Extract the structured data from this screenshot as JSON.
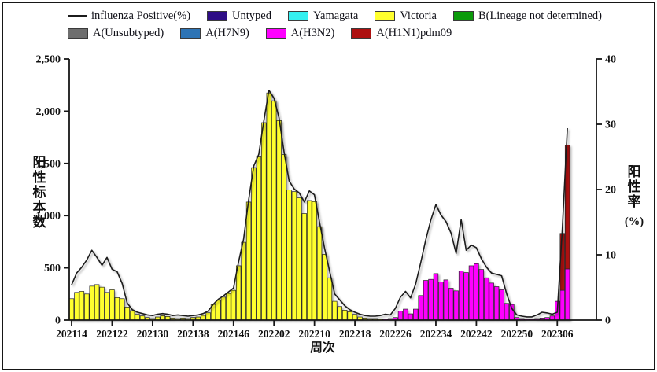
{
  "figure": {
    "background": "#ffffff",
    "border_color": "#161616"
  },
  "legend": {
    "rows": [
      [
        {
          "name": "influenza-positive-rate",
          "label": "influenza Positive(%)",
          "swatch": "line",
          "color": "#1c1c1c"
        },
        {
          "name": "untyped",
          "label": "Untyped",
          "swatch": "box",
          "color": "#2e0d86"
        },
        {
          "name": "yamagata",
          "label": "Yamagata",
          "swatch": "box",
          "color": "#35f0f0"
        },
        {
          "name": "victoria",
          "label": "Victoria",
          "swatch": "box",
          "color": "#ffff2e"
        },
        {
          "name": "b-lineage-not-determined",
          "label": "B(Lineage not determined)",
          "swatch": "box",
          "color": "#0b9a0b"
        }
      ],
      [
        {
          "name": "a-unsubtyped",
          "label": "A(Unsubtyped)",
          "swatch": "box",
          "color": "#6e6e6e"
        },
        {
          "name": "a-h7n9",
          "label": "A(H7N9)",
          "swatch": "box",
          "color": "#2e74b5"
        },
        {
          "name": "a-h3n2",
          "label": "A(H3N2)",
          "swatch": "box",
          "color": "#ff00ff"
        },
        {
          "name": "a-h1n1pdm09",
          "label": "A(H1N1)pdm09",
          "swatch": "box",
          "color": "#ad1010"
        }
      ]
    ]
  },
  "axes": {
    "left": {
      "title": "阳性标本数",
      "tick_labels": [
        "0",
        "500",
        "1,000",
        "1,500",
        "2,000",
        "2,500"
      ],
      "tick_values": [
        0,
        500,
        1000,
        1500,
        2000,
        2500
      ]
    },
    "right": {
      "title": "阳性率",
      "unit": "(%)",
      "tick_labels": [
        "0",
        "10",
        "20",
        "30",
        "40"
      ],
      "tick_values": [
        0,
        10,
        20,
        30,
        40
      ]
    },
    "x": {
      "title": "周次",
      "tick_labels": [
        "202114",
        "202122",
        "202130",
        "202138",
        "202146",
        "202202",
        "202210",
        "202218",
        "202226",
        "202234",
        "202242",
        "202250",
        "202306"
      ],
      "tick_step_weeks": 8
    }
  },
  "chart_data": {
    "type": "bar",
    "subtype": "stacked-bars-with-line",
    "xlabel": "周次",
    "ylabel_left": "阳性标本数",
    "ylabel_right": "阳性率(%)",
    "ylim_left": [
      0,
      2500
    ],
    "ylim_right": [
      0,
      40
    ],
    "grid": false,
    "legend_position": "top",
    "weeks": [
      "202114",
      "202115",
      "202116",
      "202117",
      "202118",
      "202119",
      "202120",
      "202121",
      "202122",
      "202123",
      "202124",
      "202125",
      "202126",
      "202127",
      "202128",
      "202129",
      "202130",
      "202131",
      "202132",
      "202133",
      "202134",
      "202135",
      "202136",
      "202137",
      "202138",
      "202139",
      "202140",
      "202141",
      "202142",
      "202143",
      "202144",
      "202145",
      "202146",
      "202147",
      "202148",
      "202149",
      "202150",
      "202151",
      "202152",
      "202201",
      "202202",
      "202203",
      "202204",
      "202205",
      "202206",
      "202207",
      "202208",
      "202209",
      "202210",
      "202211",
      "202212",
      "202213",
      "202214",
      "202215",
      "202216",
      "202217",
      "202218",
      "202219",
      "202220",
      "202221",
      "202222",
      "202223",
      "202224",
      "202225",
      "202226",
      "202227",
      "202228",
      "202229",
      "202230",
      "202231",
      "202232",
      "202233",
      "202234",
      "202235",
      "202236",
      "202237",
      "202238",
      "202239",
      "202240",
      "202241",
      "202242",
      "202243",
      "202244",
      "202245",
      "202246",
      "202247",
      "202248",
      "202249",
      "202250",
      "202251",
      "202252",
      "202301",
      "202302",
      "202303",
      "202304",
      "202305",
      "202306",
      "202307",
      "202308"
    ],
    "series": [
      {
        "name": "Victoria",
        "color": "#ffff2e",
        "values": [
          205,
          265,
          275,
          250,
          325,
          340,
          315,
          265,
          290,
          215,
          205,
          125,
          90,
          55,
          40,
          25,
          15,
          30,
          42,
          35,
          20,
          15,
          20,
          15,
          25,
          30,
          45,
          70,
          150,
          190,
          220,
          255,
          285,
          520,
          745,
          1130,
          1460,
          1570,
          1890,
          2175,
          2100,
          1910,
          1585,
          1245,
          1230,
          1170,
          1020,
          1145,
          1135,
          895,
          630,
          405,
          180,
          130,
          95,
          80,
          55,
          30,
          20,
          15,
          15,
          10,
          0,
          0,
          0,
          0,
          0,
          0,
          0,
          0,
          0,
          0,
          0,
          0,
          0,
          0,
          0,
          0,
          0,
          0,
          0,
          0,
          0,
          0,
          0,
          0,
          0,
          0,
          0,
          0,
          0,
          0,
          0,
          0,
          0,
          0,
          0,
          0,
          0
        ]
      },
      {
        "name": "A(H3N2)",
        "color": "#ff00ff",
        "values": [
          0,
          0,
          0,
          0,
          0,
          0,
          0,
          0,
          0,
          0,
          0,
          0,
          0,
          0,
          0,
          0,
          0,
          0,
          0,
          0,
          0,
          0,
          0,
          0,
          0,
          0,
          0,
          0,
          0,
          0,
          0,
          0,
          0,
          0,
          0,
          0,
          0,
          0,
          0,
          0,
          0,
          0,
          0,
          0,
          0,
          0,
          0,
          0,
          0,
          0,
          0,
          0,
          0,
          0,
          0,
          0,
          0,
          0,
          0,
          0,
          0,
          0,
          10,
          15,
          25,
          85,
          105,
          60,
          105,
          235,
          380,
          390,
          445,
          365,
          385,
          305,
          280,
          470,
          455,
          520,
          540,
          485,
          405,
          355,
          320,
          290,
          160,
          150,
          25,
          15,
          10,
          10,
          15,
          20,
          25,
          40,
          180,
          285,
          490
        ]
      },
      {
        "name": "A(H1N1)pdm09",
        "color": "#ad1010",
        "values": [
          0,
          0,
          0,
          0,
          0,
          0,
          0,
          0,
          0,
          0,
          0,
          0,
          0,
          0,
          0,
          0,
          0,
          0,
          0,
          0,
          0,
          0,
          0,
          0,
          0,
          0,
          0,
          0,
          0,
          0,
          0,
          0,
          0,
          0,
          0,
          0,
          0,
          0,
          0,
          0,
          0,
          0,
          0,
          0,
          0,
          0,
          0,
          0,
          0,
          0,
          0,
          0,
          0,
          0,
          0,
          0,
          0,
          0,
          0,
          0,
          0,
          0,
          0,
          0,
          0,
          0,
          0,
          0,
          0,
          0,
          0,
          0,
          0,
          0,
          0,
          0,
          0,
          0,
          0,
          0,
          0,
          0,
          0,
          0,
          0,
          0,
          0,
          0,
          0,
          0,
          0,
          0,
          0,
          0,
          0,
          0,
          0,
          545,
          1185
        ]
      }
    ],
    "line": {
      "name": "influenza Positive(%)",
      "color": "#1c1c1c",
      "axis": "right",
      "values": [
        5.4,
        7.2,
        8.1,
        9.2,
        10.7,
        9.6,
        8.4,
        9.6,
        7.8,
        7.4,
        5.6,
        2.6,
        1.6,
        1.2,
        1.0,
        0.8,
        0.7,
        0.9,
        1.0,
        0.9,
        0.7,
        0.8,
        0.7,
        0.6,
        0.7,
        0.8,
        1.0,
        1.4,
        2.4,
        3.2,
        3.7,
        4.3,
        4.9,
        8.9,
        12.4,
        18.4,
        23.6,
        25.4,
        30.5,
        35.2,
        34.0,
        31.0,
        25.7,
        21.3,
        20.1,
        19.5,
        18.1,
        19.8,
        19.2,
        15.0,
        11.0,
        7.5,
        4.0,
        3.1,
        2.2,
        1.6,
        1.2,
        0.9,
        0.7,
        0.6,
        0.6,
        0.7,
        0.9,
        0.8,
        1.8,
        3.5,
        4.4,
        3.4,
        5.5,
        8.8,
        12.3,
        15.3,
        17.7,
        16.1,
        15.1,
        13.3,
        10.2,
        15.4,
        10.7,
        11.5,
        11.1,
        9.4,
        8.1,
        7.2,
        7.0,
        6.8,
        4.0,
        1.8,
        0.8,
        0.6,
        0.5,
        0.5,
        0.8,
        1.2,
        1.1,
        0.9,
        1.2,
        14.0,
        29.4
      ]
    }
  }
}
